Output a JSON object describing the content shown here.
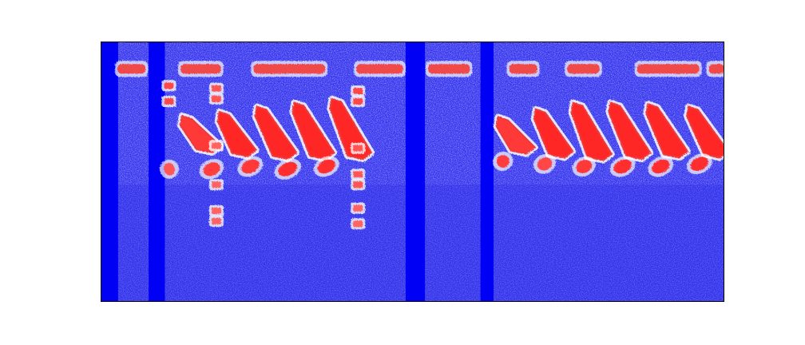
{
  "chart_data": {
    "type": "heatmap",
    "title": "",
    "xlabel": "",
    "ylabel": "",
    "grid": false,
    "legend": "none",
    "colormap": {
      "low": "#0000ff",
      "mid": "#ffffff",
      "high": "#ff0000"
    },
    "background_color": "#3a3af2",
    "silent_gaps": [
      {
        "x_start": 0.0,
        "x_end": 0.028
      },
      {
        "x_start": 0.077,
        "x_end": 0.103
      },
      {
        "x_start": 0.489,
        "x_end": 0.52
      },
      {
        "x_start": 0.609,
        "x_end": 0.63
      }
    ],
    "tone_rows": [
      {
        "y": 0.105,
        "segments": [
          [
            0.027,
            0.072
          ],
          [
            0.128,
            0.193
          ],
          [
            0.245,
            0.36
          ],
          [
            0.41,
            0.485
          ],
          [
            0.525,
            0.592
          ],
          [
            0.655,
            0.7
          ],
          [
            0.748,
            0.8
          ],
          [
            0.86,
            0.96
          ],
          [
            0.975,
            1.0
          ]
        ]
      }
    ],
    "syllables": [
      {
        "x": 0.133,
        "y_top": 0.285,
        "y_bottom": 0.42,
        "x_shift": 0.038,
        "intensity": 0.9
      },
      {
        "x": 0.193,
        "y_top": 0.27,
        "y_bottom": 0.435,
        "x_shift": 0.035,
        "intensity": 1.0
      },
      {
        "x": 0.253,
        "y_top": 0.25,
        "y_bottom": 0.445,
        "x_shift": 0.04,
        "intensity": 1.0
      },
      {
        "x": 0.313,
        "y_top": 0.235,
        "y_bottom": 0.445,
        "x_shift": 0.04,
        "intensity": 1.0
      },
      {
        "x": 0.373,
        "y_top": 0.22,
        "y_bottom": 0.445,
        "x_shift": 0.04,
        "intensity": 1.0
      },
      {
        "x": 0.64,
        "y_top": 0.29,
        "y_bottom": 0.425,
        "x_shift": 0.035,
        "intensity": 0.9
      },
      {
        "x": 0.7,
        "y_top": 0.26,
        "y_bottom": 0.44,
        "x_shift": 0.036,
        "intensity": 1.0
      },
      {
        "x": 0.76,
        "y_top": 0.235,
        "y_bottom": 0.45,
        "x_shift": 0.038,
        "intensity": 1.0
      },
      {
        "x": 0.82,
        "y_top": 0.235,
        "y_bottom": 0.445,
        "x_shift": 0.04,
        "intensity": 1.0
      },
      {
        "x": 0.88,
        "y_top": 0.24,
        "y_bottom": 0.44,
        "x_shift": 0.04,
        "intensity": 1.0
      },
      {
        "x": 0.945,
        "y_top": 0.25,
        "y_bottom": 0.44,
        "x_shift": 0.04,
        "intensity": 1.0
      }
    ],
    "low_blobs": [
      {
        "x": 0.11,
        "y": 0.49,
        "w": 0.018,
        "intensity": 0.7
      },
      {
        "x": 0.178,
        "y": 0.49,
        "w": 0.028,
        "intensity": 0.85
      },
      {
        "x": 0.24,
        "y": 0.48,
        "w": 0.03,
        "intensity": 0.9
      },
      {
        "x": 0.3,
        "y": 0.49,
        "w": 0.032,
        "intensity": 0.95
      },
      {
        "x": 0.362,
        "y": 0.48,
        "w": 0.03,
        "intensity": 0.95
      },
      {
        "x": 0.645,
        "y": 0.46,
        "w": 0.02,
        "intensity": 0.85
      },
      {
        "x": 0.712,
        "y": 0.47,
        "w": 0.024,
        "intensity": 0.8
      },
      {
        "x": 0.775,
        "y": 0.48,
        "w": 0.026,
        "intensity": 0.9
      },
      {
        "x": 0.837,
        "y": 0.48,
        "w": 0.03,
        "intensity": 0.95
      },
      {
        "x": 0.898,
        "y": 0.48,
        "w": 0.03,
        "intensity": 0.95
      },
      {
        "x": 0.96,
        "y": 0.47,
        "w": 0.03,
        "intensity": 0.95
      }
    ],
    "clicks": [
      {
        "x": 0.107,
        "y": 0.17,
        "intensity": 0.8
      },
      {
        "x": 0.107,
        "y": 0.23,
        "intensity": 0.8
      },
      {
        "x": 0.183,
        "y": 0.18,
        "intensity": 0.7
      },
      {
        "x": 0.183,
        "y": 0.22,
        "intensity": 0.7
      },
      {
        "x": 0.183,
        "y": 0.4,
        "intensity": 0.6
      },
      {
        "x": 0.183,
        "y": 0.55,
        "intensity": 0.6
      },
      {
        "x": 0.183,
        "y": 0.65,
        "intensity": 0.6
      },
      {
        "x": 0.183,
        "y": 0.69,
        "intensity": 0.6
      },
      {
        "x": 0.41,
        "y": 0.19,
        "intensity": 0.8
      },
      {
        "x": 0.41,
        "y": 0.23,
        "intensity": 0.8
      },
      {
        "x": 0.41,
        "y": 0.41,
        "intensity": 0.7
      },
      {
        "x": 0.41,
        "y": 0.51,
        "intensity": 0.7
      },
      {
        "x": 0.41,
        "y": 0.55,
        "intensity": 0.7
      },
      {
        "x": 0.41,
        "y": 0.64,
        "intensity": 0.6
      },
      {
        "x": 0.41,
        "y": 0.7,
        "intensity": 0.6
      }
    ]
  }
}
